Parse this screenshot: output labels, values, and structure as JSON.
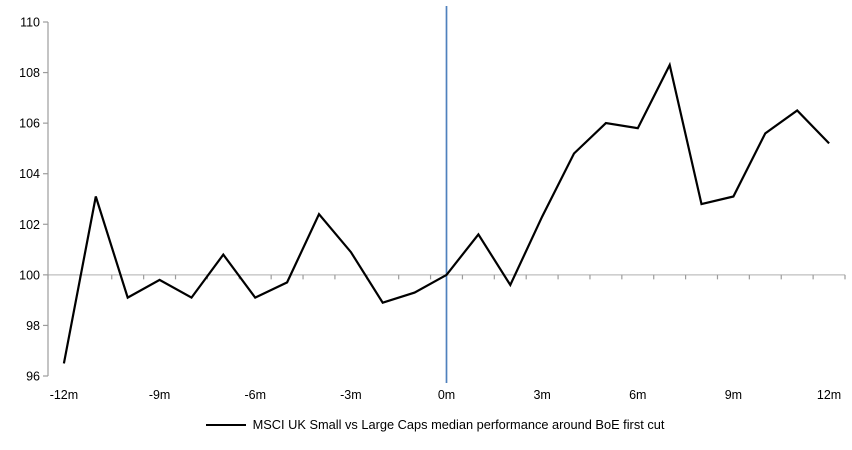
{
  "chart_data": {
    "type": "line",
    "title": "",
    "xlabel": "",
    "ylabel": "",
    "x": [
      -12,
      -11,
      -10,
      -9,
      -8,
      -7,
      -6,
      -5,
      -4,
      -3,
      -2,
      -1,
      0,
      1,
      2,
      3,
      4,
      5,
      6,
      7,
      8,
      9,
      10,
      11,
      12
    ],
    "x_unit": "m",
    "series": [
      {
        "name": "MSCI UK Small vs Large Caps median performance around BoE first cut",
        "color": "#000000",
        "values": [
          96.5,
          103.1,
          99.1,
          99.8,
          99.1,
          100.8,
          99.1,
          99.7,
          102.4,
          100.9,
          98.9,
          99.3,
          100.0,
          101.6,
          99.6,
          102.3,
          104.8,
          106.0,
          105.8,
          108.3,
          102.8,
          103.1,
          105.6,
          106.5,
          105.2
        ]
      }
    ],
    "ylim": [
      96,
      110
    ],
    "y_ticks": [
      110,
      108,
      106,
      104,
      102,
      100,
      98,
      96
    ],
    "y_tick_labels": [
      "110",
      "108",
      "106",
      "104",
      "102",
      "100",
      "98",
      "96"
    ],
    "x_ticks": [
      -12,
      -9,
      -6,
      -3,
      0,
      3,
      6,
      9,
      12
    ],
    "x_tick_labels": [
      "-12m",
      "-9m",
      "-6m",
      "-3m",
      "0m",
      "3m",
      "6m",
      "9m",
      "12m"
    ],
    "baseline_value": 100,
    "event_line_x": 0,
    "legend_position": "bottom",
    "grid": "baseline-only",
    "colors": {
      "series": "#000000",
      "event_line": "#4F81BD",
      "axis": "#9C9C9C",
      "baseline": "#BFBFBF",
      "text": "#000000",
      "background": "#FFFFFF"
    }
  }
}
